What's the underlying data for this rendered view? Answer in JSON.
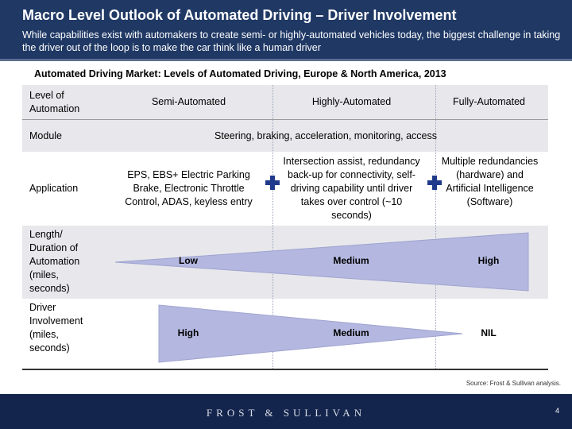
{
  "header": {
    "title": "Macro Level Outlook of Automated Driving – Driver Involvement",
    "subtitle": "While capabilities exist with automakers to create semi- or highly-automated vehicles today, the biggest challenge in taking the driver out of the loop is to make the car think like a human driver"
  },
  "market_title": "Automated Driving Market: Levels of Automated Driving, Europe & North America, 2013",
  "table": {
    "row_labels": {
      "level": "Level of Automation",
      "module": "Module",
      "application": "Application",
      "length": "Length/ Duration of Automation (miles, seconds)",
      "driver": "Driver Involvement (miles, seconds)"
    },
    "columns": [
      "Semi-Automated",
      "Highly-Automated",
      "Fully-Automated"
    ],
    "module_text": "Steering, braking, acceleration, monitoring, access",
    "applications": [
      "EPS, EBS+ Electric Parking Brake, Electronic Throttle Control, ADAS, keyless entry",
      "Intersection assist, redundancy back-up for connectivity, self-driving capability until driver takes over control (~10 seconds)",
      "Multiple redundancies (hardware) and Artificial Intelligence (Software)"
    ],
    "length_levels": [
      "Low",
      "Medium",
      "High"
    ],
    "driver_levels": [
      "High",
      "Medium",
      "NIL"
    ]
  },
  "colors": {
    "header_bg": "#1f3864",
    "wedge_fill": "#b4b8e0",
    "plus": "#1f3a8a"
  },
  "source": "Source: Frost & Sullivan analysis.",
  "footer": {
    "brand": "FROST & SULLIVAN",
    "page": "4"
  }
}
